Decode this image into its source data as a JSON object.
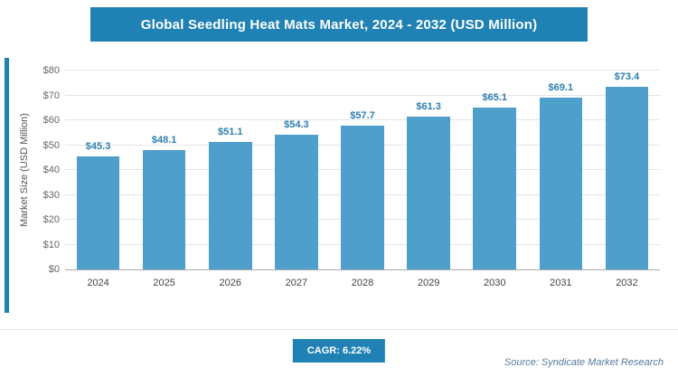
{
  "header": {
    "title": "Global Seedling Heat Mats Market, 2024 - 2032 (USD Million)"
  },
  "chart_data": {
    "type": "bar",
    "title": "Global Seedling Heat Mats Market, 2024 - 2032 (USD Million)",
    "categories": [
      "2024",
      "2025",
      "2026",
      "2027",
      "2028",
      "2029",
      "2030",
      "2031",
      "2032"
    ],
    "values": [
      45.3,
      48.1,
      51.1,
      54.3,
      57.7,
      61.3,
      65.1,
      69.1,
      73.4
    ],
    "value_labels": [
      "$45.3",
      "$48.1",
      "$51.1",
      "$54.3",
      "$57.7",
      "$61.3",
      "$65.1",
      "$69.1",
      "$73.4"
    ],
    "xlabel": "",
    "ylabel": "Market Size (USD Million)",
    "ylim": [
      0,
      80
    ],
    "yticks": [
      {
        "value": 0,
        "label": "$0"
      },
      {
        "value": 10,
        "label": "$10"
      },
      {
        "value": 20,
        "label": "$20"
      },
      {
        "value": 30,
        "label": "$30"
      },
      {
        "value": 40,
        "label": "$40"
      },
      {
        "value": 50,
        "label": "$50"
      },
      {
        "value": 60,
        "label": "$60"
      },
      {
        "value": 70,
        "label": "$70"
      },
      {
        "value": 80,
        "label": "$80"
      }
    ],
    "grid": "horizontal",
    "legend": "none",
    "bar_color": "#4E9FCB",
    "label_color": "#2E7EB0"
  },
  "footer": {
    "cagr_label": "CAGR: 6.22%",
    "source": "Source: Syndicate Market Research"
  },
  "colors": {
    "accent": "#2081B4",
    "bar": "#4E9FCB",
    "value_label": "#2E7EB0"
  }
}
